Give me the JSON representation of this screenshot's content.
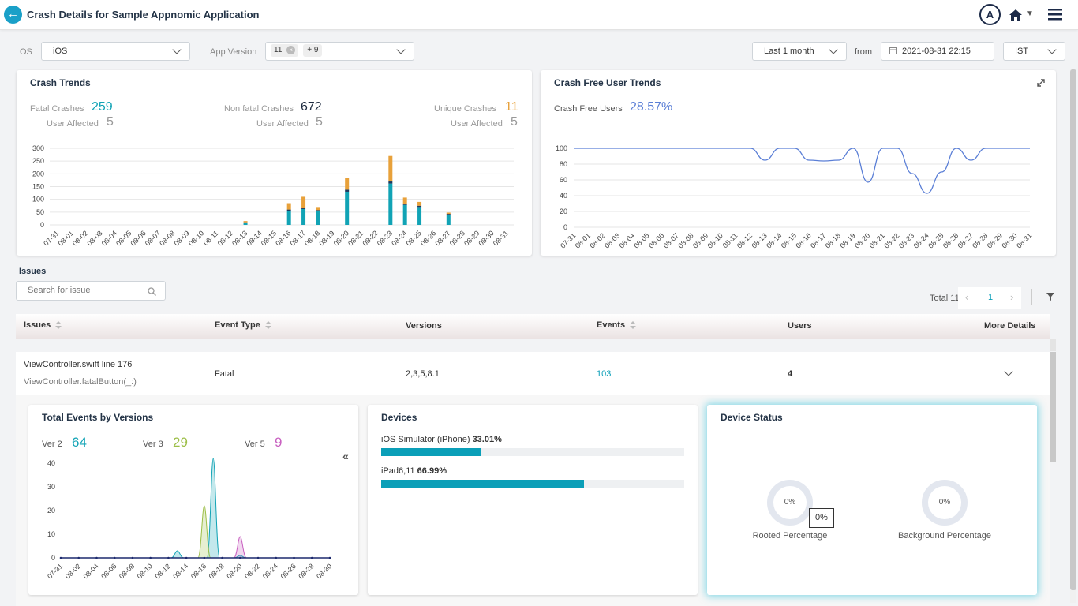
{
  "header": {
    "title": "Crash Details for Sample Appnomic Application",
    "avatar": "A"
  },
  "filters": {
    "os_label": "OS",
    "os_value": "iOS",
    "app_version_label": "App Version",
    "app_version_chip": "11",
    "app_version_more": "+ 9",
    "range_value": "Last 1 month",
    "from_label": "from",
    "date_value": "2021-08-31 22:15",
    "tz_value": "IST"
  },
  "crash_trends": {
    "title": "Crash Trends",
    "fatal_label": "Fatal Crashes",
    "fatal_value": "259",
    "fatal_user_label": "User Affected",
    "fatal_user_value": "5",
    "nonfatal_label": "Non fatal Crashes",
    "nonfatal_value": "672",
    "nonfatal_user_label": "User Affected",
    "nonfatal_user_value": "5",
    "unique_label": "Unique Crashes",
    "unique_value": "11",
    "unique_user_label": "User Affected",
    "unique_user_value": "5",
    "colors": {
      "teal": "#11a3b5",
      "orange": "#e8a13a",
      "dark": "#1d3a5f"
    }
  },
  "crash_free": {
    "title": "Crash Free User Trends",
    "label": "Crash Free Users",
    "value": "28.57%",
    "color": "#5b7fd6"
  },
  "issues": {
    "title": "Issues",
    "search_placeholder": "Search for issue",
    "total": "Total 11",
    "page": "1",
    "columns": [
      "Issues",
      "Event Type",
      "Versions",
      "Events",
      "Users",
      "More Details"
    ],
    "row": {
      "issue": "ViewController.swift line 176",
      "sub": "ViewController.fatalButton(_:)",
      "event_type": "Fatal",
      "versions": "2,3,5,8.1",
      "events": "103",
      "users": "4"
    }
  },
  "total_events": {
    "title": "Total Events by Versions",
    "legend": [
      {
        "label": "Ver 2",
        "value": "64",
        "color": "#11a3b5"
      },
      {
        "label": "Ver 3",
        "value": "29",
        "color": "#9cbe47"
      },
      {
        "label": "Ver 5",
        "value": "9",
        "color": "#c85fc0"
      }
    ]
  },
  "devices": {
    "title": "Devices",
    "items": [
      {
        "name": "iOS Simulator (iPhone)",
        "pct": "33.01%",
        "fraction": 0.3301
      },
      {
        "name": "iPad6,11",
        "pct": "66.99%",
        "fraction": 0.6699
      }
    ]
  },
  "device_status": {
    "title": "Device Status",
    "rooted_value": "0%",
    "rooted_label": "Rooted Percentage",
    "tooltip": "0%",
    "background_value": "0%",
    "background_label": "Background Percentage"
  },
  "chart_data": [
    {
      "type": "bar",
      "title": "Crash Trends",
      "categories": [
        "07-31",
        "08-01",
        "08-02",
        "08-03",
        "08-04",
        "08-05",
        "08-06",
        "08-07",
        "08-08",
        "08-09",
        "08-10",
        "08-11",
        "08-12",
        "08-13",
        "08-14",
        "08-15",
        "08-16",
        "08-17",
        "08-18",
        "08-19",
        "08-20",
        "08-21",
        "08-22",
        "08-23",
        "08-24",
        "08-25",
        "08-26",
        "08-27",
        "08-28",
        "08-29",
        "08-30",
        "08-31"
      ],
      "ylim": [
        0,
        300
      ],
      "yticks": [
        0,
        50,
        100,
        150,
        200,
        250,
        300
      ],
      "series": [
        {
          "name": "Fatal",
          "color": "#11a3b5",
          "values": [
            0,
            0,
            0,
            0,
            0,
            0,
            0,
            0,
            0,
            0,
            0,
            0,
            0,
            8,
            0,
            0,
            55,
            62,
            55,
            0,
            130,
            0,
            0,
            162,
            78,
            70,
            0,
            40,
            0,
            0,
            0,
            0
          ]
        },
        {
          "name": "dark",
          "color": "#1d3a5f",
          "values": [
            0,
            0,
            0,
            0,
            0,
            0,
            0,
            0,
            0,
            0,
            0,
            0,
            0,
            2,
            0,
            0,
            5,
            3,
            3,
            0,
            8,
            0,
            0,
            8,
            4,
            5,
            0,
            3,
            0,
            0,
            0,
            0
          ]
        },
        {
          "name": "Non fatal",
          "color": "#e8a13a",
          "values": [
            0,
            0,
            0,
            0,
            0,
            0,
            0,
            0,
            0,
            0,
            0,
            0,
            0,
            5,
            0,
            0,
            25,
            45,
            12,
            0,
            45,
            0,
            0,
            100,
            25,
            15,
            0,
            5,
            0,
            0,
            0,
            0
          ]
        }
      ]
    },
    {
      "type": "line",
      "title": "Crash Free User Trends",
      "categories": [
        "07-31",
        "08-01",
        "08-02",
        "08-03",
        "08-04",
        "08-05",
        "08-06",
        "08-07",
        "08-08",
        "08-09",
        "08-10",
        "08-11",
        "08-12",
        "08-13",
        "08-14",
        "08-15",
        "08-16",
        "08-17",
        "08-18",
        "08-19",
        "08-20",
        "08-21",
        "08-22",
        "08-23",
        "08-24",
        "08-25",
        "08-26",
        "08-27",
        "08-28",
        "08-29",
        "08-30",
        "08-31"
      ],
      "ylim": [
        0,
        100
      ],
      "yticks": [
        0,
        20,
        40,
        60,
        80,
        100
      ],
      "series": [
        {
          "name": "Crash Free Users",
          "color": "#5b7fd6",
          "values": [
            100,
            100,
            100,
            100,
            100,
            100,
            100,
            100,
            100,
            100,
            100,
            100,
            100,
            85,
            100,
            100,
            85,
            84,
            85,
            100,
            57,
            100,
            100,
            68,
            43,
            70,
            100,
            85,
            100,
            100,
            100,
            100
          ]
        }
      ]
    },
    {
      "type": "area",
      "title": "Total Events by Versions",
      "categories": [
        "07-31",
        "08-02",
        "08-04",
        "08-06",
        "08-08",
        "08-10",
        "08-12",
        "08-14",
        "08-16",
        "08-18",
        "08-20",
        "08-22",
        "08-24",
        "08-26",
        "08-28",
        "08-30"
      ],
      "ylim": [
        0,
        40
      ],
      "yticks": [
        0,
        10,
        20,
        30,
        40
      ],
      "series": [
        {
          "name": "Ver 2",
          "color": "#11a3b5",
          "peaks": [
            {
              "x": "08-13",
              "y": 3
            },
            {
              "x": "08-17",
              "y": 42
            },
            {
              "x": "08-20",
              "y": 1
            }
          ]
        },
        {
          "name": "Ver 3",
          "color": "#9cbe47",
          "peaks": [
            {
              "x": "08-16",
              "y": 22
            }
          ]
        },
        {
          "name": "Ver 5",
          "color": "#c85fc0",
          "peaks": [
            {
              "x": "08-20",
              "y": 9
            }
          ]
        }
      ]
    }
  ]
}
